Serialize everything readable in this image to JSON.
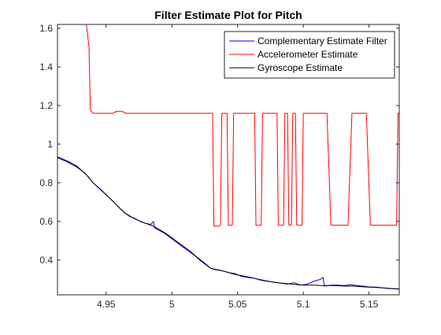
{
  "chart_data": {
    "type": "line",
    "title": "Filter Estimate Plot for Pitch",
    "xlabel": "",
    "ylabel": "",
    "xlim": [
      4.913,
      5.173
    ],
    "ylim": [
      0.22,
      1.62
    ],
    "grid": false,
    "legend_position": "top-right",
    "xticks": [
      4.95,
      5,
      5.05,
      5.1,
      5.15
    ],
    "xtick_labels": [
      "4.95",
      "5",
      "5.05",
      "5.1",
      "5.15"
    ],
    "yticks": [
      0.4,
      0.6,
      0.8,
      1.0,
      1.2,
      1.4,
      1.6
    ],
    "ytick_labels": [
      "0.4",
      "0.6",
      "0.8",
      "1",
      "1.2",
      "1.4",
      "1.6"
    ],
    "series": [
      {
        "name": "Complementary Estimate Filter",
        "color": "#0000ff",
        "points": [
          [
            4.913,
            0.935
          ],
          [
            4.918,
            0.92
          ],
          [
            4.923,
            0.905
          ],
          [
            4.928,
            0.885
          ],
          [
            4.932,
            0.86
          ],
          [
            4.936,
            0.835
          ],
          [
            4.94,
            0.8
          ],
          [
            4.944,
            0.775
          ],
          [
            4.948,
            0.75
          ],
          [
            4.952,
            0.725
          ],
          [
            4.956,
            0.7
          ],
          [
            4.96,
            0.67
          ],
          [
            4.964,
            0.645
          ],
          [
            4.968,
            0.625
          ],
          [
            4.972,
            0.615
          ],
          [
            4.976,
            0.6
          ],
          [
            4.98,
            0.59
          ],
          [
            4.984,
            0.585
          ],
          [
            4.986,
            0.6
          ],
          [
            4.987,
            0.565
          ],
          [
            4.99,
            0.555
          ],
          [
            4.994,
            0.54
          ],
          [
            4.998,
            0.52
          ],
          [
            5.002,
            0.5
          ],
          [
            5.006,
            0.48
          ],
          [
            5.01,
            0.46
          ],
          [
            5.014,
            0.44
          ],
          [
            5.018,
            0.42
          ],
          [
            5.022,
            0.395
          ],
          [
            5.026,
            0.375
          ],
          [
            5.029,
            0.36
          ],
          [
            5.033,
            0.35
          ],
          [
            5.038,
            0.345
          ],
          [
            5.043,
            0.335
          ],
          [
            5.048,
            0.33
          ],
          [
            5.053,
            0.315
          ],
          [
            5.058,
            0.31
          ],
          [
            5.063,
            0.305
          ],
          [
            5.068,
            0.295
          ],
          [
            5.073,
            0.29
          ],
          [
            5.078,
            0.285
          ],
          [
            5.083,
            0.28
          ],
          [
            5.088,
            0.275
          ],
          [
            5.093,
            0.283
          ],
          [
            5.098,
            0.27
          ],
          [
            5.103,
            0.275
          ],
          [
            5.108,
            0.29
          ],
          [
            5.113,
            0.3
          ],
          [
            5.115,
            0.31
          ],
          [
            5.116,
            0.265
          ],
          [
            5.121,
            0.27
          ],
          [
            5.126,
            0.27
          ],
          [
            5.131,
            0.268
          ],
          [
            5.136,
            0.272
          ],
          [
            5.141,
            0.268
          ],
          [
            5.146,
            0.265
          ],
          [
            5.151,
            0.26
          ],
          [
            5.156,
            0.26
          ],
          [
            5.161,
            0.255
          ],
          [
            5.166,
            0.252
          ],
          [
            5.173,
            0.25
          ]
        ]
      },
      {
        "name": "Accelerometer Estimate",
        "color": "#ff0000",
        "points": [
          [
            4.935,
            1.62
          ],
          [
            4.937,
            1.5
          ],
          [
            4.938,
            1.175
          ],
          [
            4.94,
            1.16
          ],
          [
            4.955,
            1.16
          ],
          [
            4.958,
            1.17
          ],
          [
            4.962,
            1.17
          ],
          [
            4.965,
            1.16
          ],
          [
            5.031,
            1.16
          ],
          [
            5.032,
            0.575
          ],
          [
            5.036,
            0.575
          ],
          [
            5.037,
            0.58
          ],
          [
            5.038,
            1.16
          ],
          [
            5.042,
            1.16
          ],
          [
            5.043,
            0.58
          ],
          [
            5.046,
            0.58
          ],
          [
            5.047,
            1.16
          ],
          [
            5.063,
            1.16
          ],
          [
            5.064,
            0.58
          ],
          [
            5.068,
            0.58
          ],
          [
            5.069,
            1.16
          ],
          [
            5.08,
            1.16
          ],
          [
            5.081,
            0.58
          ],
          [
            5.085,
            0.58
          ],
          [
            5.086,
            1.16
          ],
          [
            5.088,
            1.16
          ],
          [
            5.089,
            0.58
          ],
          [
            5.091,
            0.58
          ],
          [
            5.092,
            1.16
          ],
          [
            5.094,
            1.16
          ],
          [
            5.095,
            0.58
          ],
          [
            5.099,
            0.58
          ],
          [
            5.1,
            1.16
          ],
          [
            5.118,
            1.16
          ],
          [
            5.121,
            0.58
          ],
          [
            5.134,
            0.58
          ],
          [
            5.137,
            1.16
          ],
          [
            5.148,
            1.16
          ],
          [
            5.151,
            0.58
          ],
          [
            5.171,
            0.58
          ],
          [
            5.172,
            1.16
          ],
          [
            5.173,
            1.16
          ]
        ]
      },
      {
        "name": "Gyroscope Estimate",
        "color": "#000000",
        "points": [
          [
            4.913,
            0.93
          ],
          [
            4.92,
            0.91
          ],
          [
            4.928,
            0.88
          ],
          [
            4.934,
            0.85
          ],
          [
            4.94,
            0.8
          ],
          [
            4.946,
            0.765
          ],
          [
            4.952,
            0.725
          ],
          [
            4.958,
            0.685
          ],
          [
            4.964,
            0.645
          ],
          [
            4.97,
            0.62
          ],
          [
            4.976,
            0.6
          ],
          [
            4.982,
            0.585
          ],
          [
            4.986,
            0.575
          ],
          [
            4.99,
            0.56
          ],
          [
            4.996,
            0.535
          ],
          [
            5.002,
            0.505
          ],
          [
            5.008,
            0.475
          ],
          [
            5.014,
            0.445
          ],
          [
            5.02,
            0.41
          ],
          [
            5.026,
            0.378
          ],
          [
            5.03,
            0.355
          ],
          [
            5.036,
            0.348
          ],
          [
            5.042,
            0.338
          ],
          [
            5.048,
            0.325
          ],
          [
            5.054,
            0.318
          ],
          [
            5.06,
            0.31
          ],
          [
            5.066,
            0.3
          ],
          [
            5.072,
            0.292
          ],
          [
            5.078,
            0.285
          ],
          [
            5.084,
            0.28
          ],
          [
            5.09,
            0.276
          ],
          [
            5.096,
            0.272
          ],
          [
            5.102,
            0.27
          ],
          [
            5.108,
            0.27
          ],
          [
            5.114,
            0.268
          ],
          [
            5.12,
            0.268
          ],
          [
            5.126,
            0.267
          ],
          [
            5.132,
            0.265
          ],
          [
            5.138,
            0.265
          ],
          [
            5.144,
            0.262
          ],
          [
            5.15,
            0.26
          ],
          [
            5.156,
            0.258
          ],
          [
            5.162,
            0.255
          ],
          [
            5.168,
            0.252
          ],
          [
            5.173,
            0.25
          ]
        ]
      }
    ]
  }
}
